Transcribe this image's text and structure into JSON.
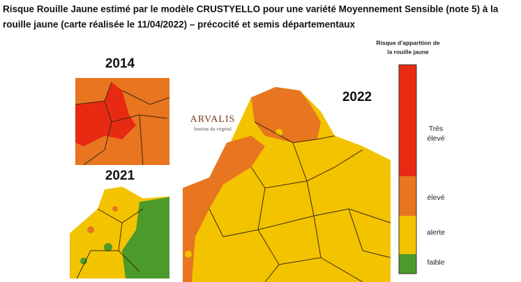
{
  "title": [
    "Risque Rouille Jaune estimé par le modèle CRUSTYELLO pour une variété Moyennement Sensible (note 5) à la",
    "rouille jaune (carte réalisée le 11/04/2022) – précocité et semis départementaux"
  ],
  "maps": [
    {
      "year": "2014"
    },
    {
      "year": "2021"
    },
    {
      "year": "2022"
    }
  ],
  "logo": {
    "name": "ARVALIS",
    "subtitle": "Institut du végétal"
  },
  "legend": {
    "title": [
      "Risque d'apparition de",
      "la rouille jaune"
    ],
    "levels": [
      {
        "label": [
          "Très",
          "élevé"
        ]
      },
      {
        "label": [
          "élevé"
        ]
      },
      {
        "label": [
          "alerte"
        ]
      },
      {
        "label": [
          "faible"
        ]
      }
    ]
  }
}
